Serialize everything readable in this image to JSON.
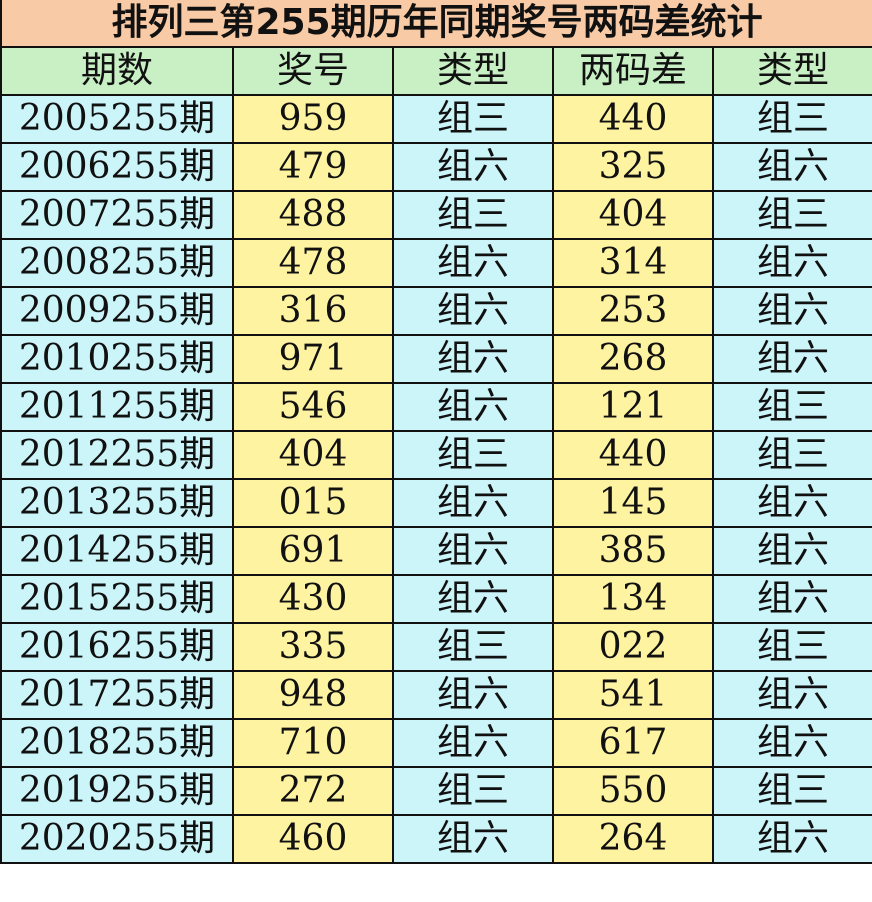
{
  "title": "排列三第255期历年同期奖号两码差统计",
  "headers": [
    "期数",
    "奖号",
    "类型",
    "两码差",
    "类型"
  ],
  "rows": [
    [
      "2005255期",
      "959",
      "组三",
      "440",
      "组三"
    ],
    [
      "2006255期",
      "479",
      "组六",
      "325",
      "组六"
    ],
    [
      "2007255期",
      "488",
      "组三",
      "404",
      "组三"
    ],
    [
      "2008255期",
      "478",
      "组六",
      "314",
      "组六"
    ],
    [
      "2009255期",
      "316",
      "组六",
      "253",
      "组六"
    ],
    [
      "2010255期",
      "971",
      "组六",
      "268",
      "组六"
    ],
    [
      "2011255期",
      "546",
      "组六",
      "121",
      "组三"
    ],
    [
      "2012255期",
      "404",
      "组三",
      "440",
      "组三"
    ],
    [
      "2013255期",
      "015",
      "组六",
      "145",
      "组六"
    ],
    [
      "2014255期",
      "691",
      "组六",
      "385",
      "组六"
    ],
    [
      "2015255期",
      "430",
      "组六",
      "134",
      "组六"
    ],
    [
      "2016255期",
      "335",
      "组三",
      "022",
      "组三"
    ],
    [
      "2017255期",
      "948",
      "组六",
      "541",
      "组六"
    ],
    [
      "2018255期",
      "710",
      "组六",
      "617",
      "组六"
    ],
    [
      "2019255期",
      "272",
      "组三",
      "550",
      "组三"
    ],
    [
      "2020255期",
      "460",
      "组六",
      "264",
      "组六"
    ]
  ],
  "colors": {
    "title_bg": "#f8cba6",
    "header_bg": "#c8f0c4",
    "cyan": "#ccf5f9",
    "yellow": "#fdf3a0"
  }
}
